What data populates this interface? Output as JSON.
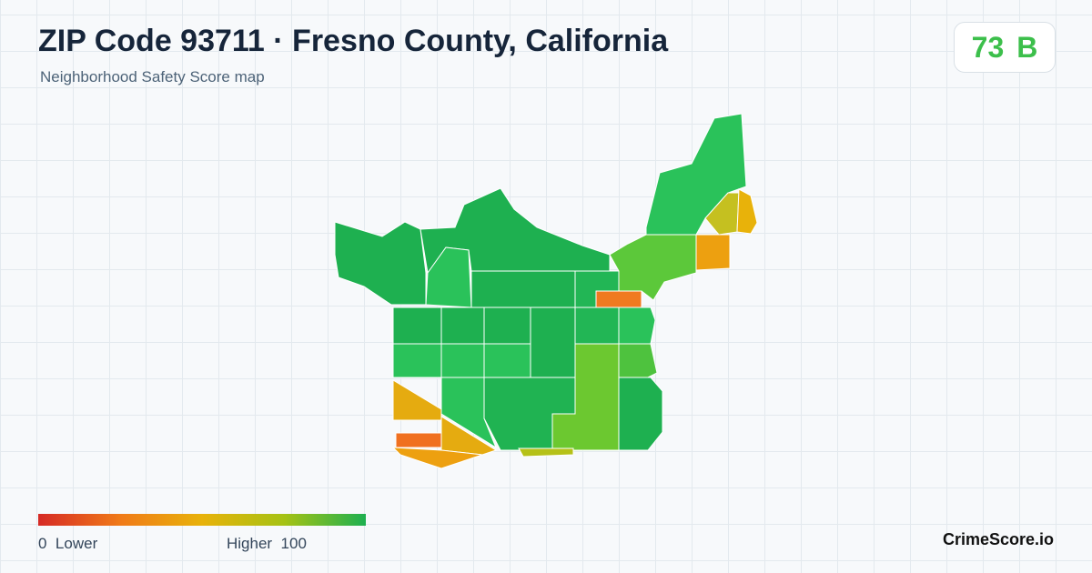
{
  "header": {
    "title": "ZIP Code 93711 · Fresno County, California",
    "subtitle": "Neighborhood Safety Score map"
  },
  "score": {
    "value": 73,
    "grade": "B"
  },
  "legend": {
    "min": 0,
    "min_label": "Lower",
    "max_label": "Higher",
    "max": 100
  },
  "brand": "CrimeScore.io"
}
